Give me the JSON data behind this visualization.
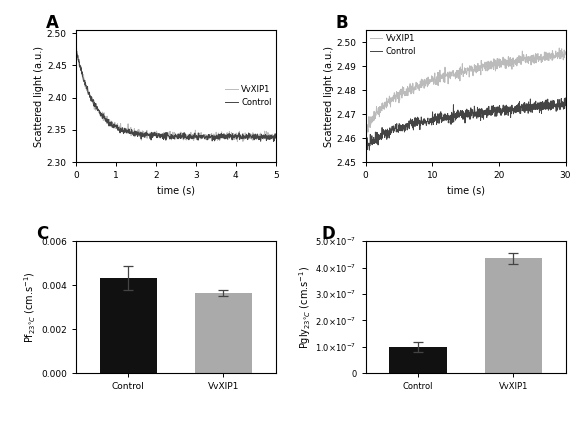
{
  "panel_A": {
    "label": "A",
    "xlim": [
      0,
      5
    ],
    "ylim": [
      2.3,
      2.505
    ],
    "yticks": [
      2.3,
      2.35,
      2.4,
      2.45,
      2.5
    ],
    "xticks": [
      0,
      1,
      2,
      3,
      4,
      5
    ],
    "xlabel": "time (s)",
    "ylabel": "Scattered light (a.u.)",
    "legend": [
      "VvXIP1",
      "Control"
    ],
    "vvxip1_color": "#bbbbbb",
    "control_color": "#444444",
    "start_val": 2.478,
    "end_val": 2.34,
    "noise": 0.003
  },
  "panel_B": {
    "label": "B",
    "xlim": [
      0,
      30
    ],
    "ylim": [
      2.45,
      2.505
    ],
    "yticks": [
      2.45,
      2.46,
      2.47,
      2.48,
      2.49,
      2.5
    ],
    "xticks": [
      0,
      10,
      20,
      30
    ],
    "xlabel": "time (s)",
    "ylabel": "Scattered light (a.u.)",
    "legend": [
      "VvXIP1",
      "Control"
    ],
    "vvxip1_color": "#bbbbbb",
    "control_color": "#444444",
    "vvxip1_start": 2.462,
    "vvxip1_end": 2.495,
    "control_start": 2.456,
    "control_end": 2.474,
    "noise": 0.0012
  },
  "panel_C": {
    "label": "C",
    "categories": [
      "Control",
      "VvXIP1"
    ],
    "values": [
      0.00432,
      0.00365
    ],
    "errors": [
      0.00055,
      0.00012
    ],
    "colors": [
      "#111111",
      "#aaaaaa"
    ],
    "ylim": [
      0,
      0.006
    ],
    "yticks": [
      0.0,
      0.002,
      0.004,
      0.006
    ],
    "ylabel": "Pf$_{23°C}$ (cm.s$^{-1}$)",
    "xlabel": ""
  },
  "panel_D": {
    "label": "D",
    "categories": [
      "Control",
      "VvXIP1"
    ],
    "values": [
      1e-07,
      4.35e-07
    ],
    "errors": [
      1.8e-08,
      2.2e-08
    ],
    "colors": [
      "#111111",
      "#aaaaaa"
    ],
    "ylim": [
      0,
      5e-07
    ],
    "yticks": [
      0,
      1e-07,
      2e-07,
      3e-07,
      4e-07,
      5e-07
    ],
    "ylabel": "Pgly$_{23°C}$ (cm.s$^{-1}$)",
    "xlabel": ""
  }
}
